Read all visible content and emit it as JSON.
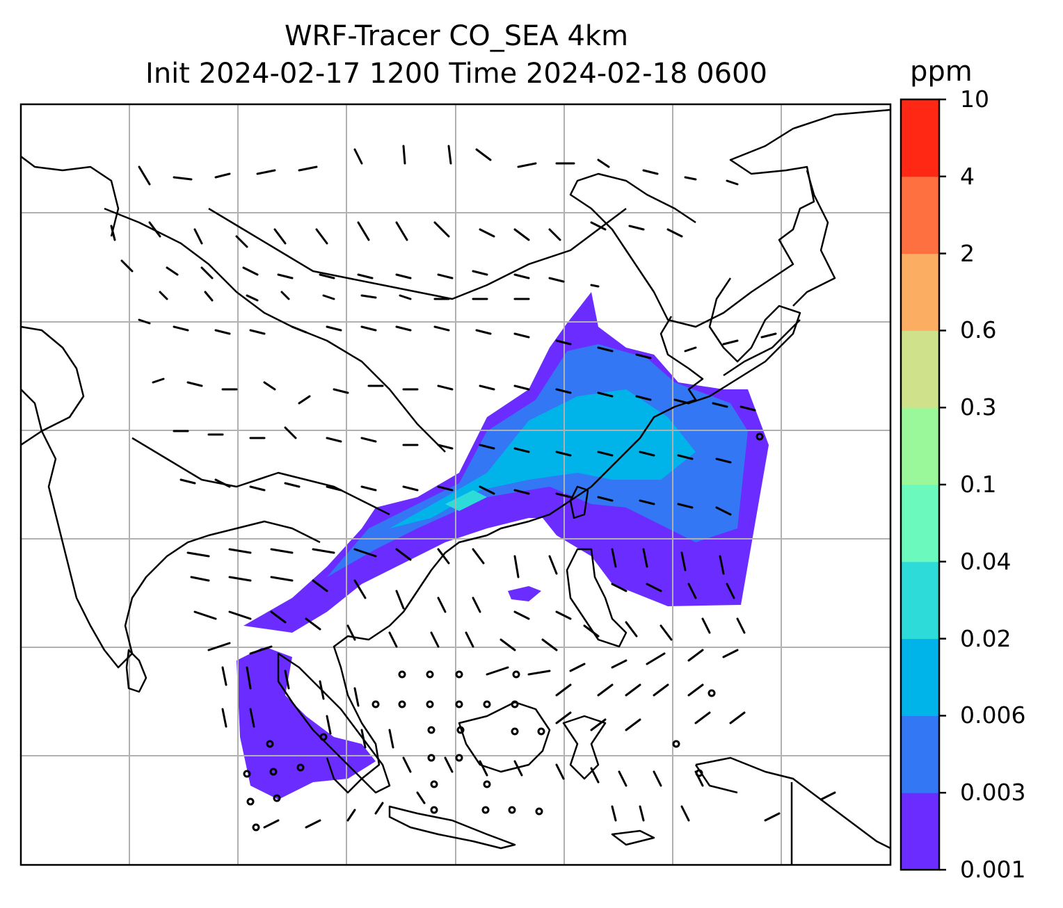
{
  "title": {
    "line1": "WRF-Tracer CO_SEA 4km",
    "line2": "Init 2024-02-17 1200 Time 2024-02-18 0600"
  },
  "colorbar": {
    "unit": "ppm",
    "levels": [
      "0.001",
      "0.003",
      "0.006",
      "0.02",
      "0.04",
      "0.1",
      "0.3",
      "0.6",
      "2",
      "4",
      "10"
    ],
    "colors": [
      "#6a2cff",
      "#3477f4",
      "#00b4ea",
      "#2ddcd8",
      "#6cf9bd",
      "#9af89a",
      "#cfe28b",
      "#fbae62",
      "#ff7040",
      "#ff2814"
    ]
  },
  "map": {
    "region": "Southeast / East Asia",
    "tracer_colors": {
      "low": "#6a2cff",
      "mid": "#3477f4",
      "high": "#00b4ea",
      "peak": "#2ddcd8"
    },
    "gridline_color": "#b0b0b0",
    "coastline_color": "#000000"
  }
}
